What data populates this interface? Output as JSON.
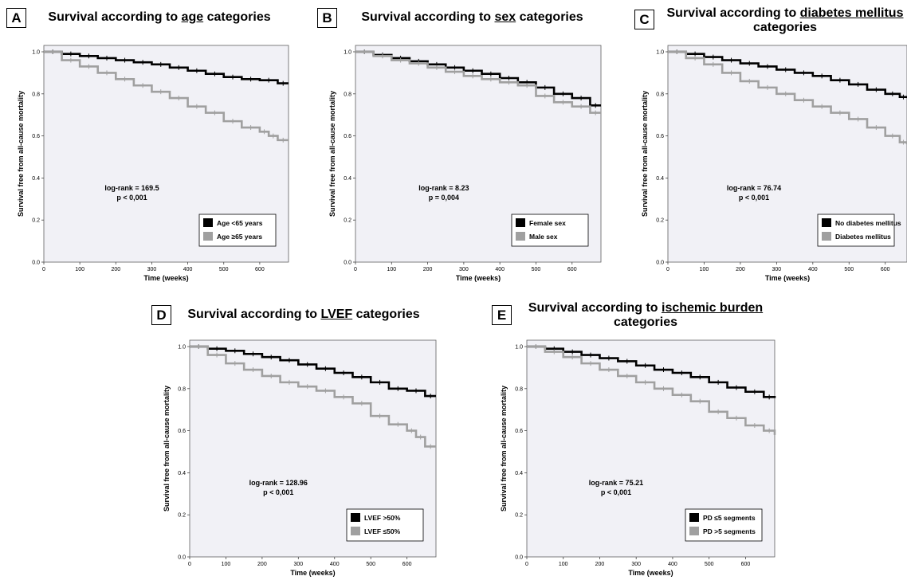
{
  "chart_data": [
    {
      "type": "line",
      "subtype": "kaplan-meier",
      "panel_letter": "A",
      "title": {
        "prefix": "Survival according to ",
        "underlined": "age",
        "suffix": " categories"
      },
      "xlabel": "Time (weeks)",
      "ylabel": "Survival free from all-cause mortality",
      "xlim": [
        0,
        680
      ],
      "ylim": [
        0,
        1.0
      ],
      "xticks": [
        0,
        100,
        200,
        300,
        400,
        500,
        600
      ],
      "yticks": [
        0.0,
        0.2,
        0.4,
        0.6,
        0.8,
        1.0
      ],
      "annotation": {
        "stat": "log-rank = 169.5",
        "p": "p < 0,001"
      },
      "legend_position": "bottom-right",
      "series": [
        {
          "name": "Age <65 years",
          "color": "#000000",
          "x": [
            0,
            50,
            100,
            150,
            200,
            250,
            300,
            350,
            400,
            450,
            500,
            550,
            600,
            650,
            680
          ],
          "y": [
            1.0,
            0.99,
            0.98,
            0.97,
            0.96,
            0.95,
            0.94,
            0.925,
            0.91,
            0.895,
            0.88,
            0.87,
            0.865,
            0.85,
            0.85
          ]
        },
        {
          "name": "Age ≥65 years",
          "color": "#a0a0a0",
          "x": [
            0,
            50,
            100,
            150,
            200,
            250,
            300,
            350,
            400,
            450,
            500,
            550,
            600,
            625,
            650,
            680
          ],
          "y": [
            1.0,
            0.96,
            0.93,
            0.9,
            0.87,
            0.84,
            0.81,
            0.78,
            0.74,
            0.71,
            0.67,
            0.64,
            0.62,
            0.6,
            0.58,
            0.58
          ]
        }
      ]
    },
    {
      "type": "line",
      "subtype": "kaplan-meier",
      "panel_letter": "B",
      "title": {
        "prefix": "Survival according to ",
        "underlined": "sex",
        "suffix": " categories"
      },
      "xlabel": "Time (weeks)",
      "ylabel": "Survival free from all-cause mortality",
      "xlim": [
        0,
        680
      ],
      "ylim": [
        0,
        1.0
      ],
      "xticks": [
        0,
        100,
        200,
        300,
        400,
        500,
        600
      ],
      "yticks": [
        0.0,
        0.2,
        0.4,
        0.6,
        0.8,
        1.0
      ],
      "annotation": {
        "stat": "log-rank = 8.23",
        "p": "p = 0,004"
      },
      "legend_position": "bottom-right",
      "series": [
        {
          "name": "Female sex",
          "color": "#000000",
          "x": [
            0,
            50,
            100,
            150,
            200,
            250,
            300,
            350,
            400,
            450,
            500,
            550,
            600,
            650,
            680
          ],
          "y": [
            1.0,
            0.985,
            0.97,
            0.955,
            0.94,
            0.925,
            0.91,
            0.895,
            0.875,
            0.855,
            0.83,
            0.8,
            0.78,
            0.745,
            0.745
          ]
        },
        {
          "name": "Male sex",
          "color": "#a0a0a0",
          "x": [
            0,
            50,
            100,
            150,
            200,
            250,
            300,
            350,
            400,
            450,
            500,
            550,
            600,
            650,
            680
          ],
          "y": [
            1.0,
            0.98,
            0.96,
            0.945,
            0.925,
            0.905,
            0.885,
            0.87,
            0.855,
            0.84,
            0.79,
            0.76,
            0.74,
            0.71,
            0.71
          ]
        }
      ]
    },
    {
      "type": "line",
      "subtype": "kaplan-meier",
      "panel_letter": "C",
      "title": {
        "prefix": "Survival according to ",
        "underlined": "diabetes mellitus",
        "suffix": " categories"
      },
      "xlabel": "Time (weeks)",
      "ylabel": "Survival free from all-cause mortality",
      "xlim": [
        0,
        660
      ],
      "ylim": [
        0,
        1.0
      ],
      "xticks": [
        0,
        100,
        200,
        300,
        400,
        500,
        600
      ],
      "yticks": [
        0.0,
        0.2,
        0.4,
        0.6,
        0.8,
        1.0
      ],
      "annotation": {
        "stat": "log-rank = 76.74",
        "p": "p < 0,001"
      },
      "legend_position": "bottom-right",
      "series": [
        {
          "name": "No diabetes mellitus",
          "color": "#000000",
          "x": [
            0,
            50,
            100,
            150,
            200,
            250,
            300,
            350,
            400,
            450,
            500,
            550,
            600,
            640,
            660
          ],
          "y": [
            1.0,
            0.99,
            0.975,
            0.96,
            0.945,
            0.93,
            0.915,
            0.9,
            0.885,
            0.865,
            0.845,
            0.82,
            0.8,
            0.785,
            0.78
          ]
        },
        {
          "name": "Diabetes mellitus",
          "color": "#a0a0a0",
          "x": [
            0,
            50,
            100,
            150,
            200,
            250,
            300,
            350,
            400,
            450,
            500,
            550,
            600,
            640,
            660
          ],
          "y": [
            1.0,
            0.97,
            0.94,
            0.9,
            0.86,
            0.83,
            0.8,
            0.77,
            0.74,
            0.71,
            0.68,
            0.64,
            0.6,
            0.57,
            0.56
          ]
        }
      ]
    },
    {
      "type": "line",
      "subtype": "kaplan-meier",
      "panel_letter": "D",
      "title": {
        "prefix": "Survival according to ",
        "underlined": "LVEF",
        "suffix": " categories"
      },
      "xlabel": "Time (weeks)",
      "ylabel": "Survival free from all-cause mortality",
      "xlim": [
        0,
        680
      ],
      "ylim": [
        0,
        1.0
      ],
      "xticks": [
        0,
        100,
        200,
        300,
        400,
        500,
        600
      ],
      "yticks": [
        0.0,
        0.2,
        0.4,
        0.6,
        0.8,
        1.0
      ],
      "annotation": {
        "stat": "log-rank = 128.96",
        "p": "p < 0,001"
      },
      "legend_position": "bottom-right",
      "series": [
        {
          "name": "LVEF >50%",
          "color": "#000000",
          "x": [
            0,
            50,
            100,
            150,
            200,
            250,
            300,
            350,
            400,
            450,
            500,
            550,
            600,
            650,
            680
          ],
          "y": [
            1.0,
            0.99,
            0.98,
            0.965,
            0.95,
            0.935,
            0.915,
            0.895,
            0.875,
            0.855,
            0.83,
            0.8,
            0.79,
            0.765,
            0.765
          ]
        },
        {
          "name": "LVEF ≤50%",
          "color": "#a0a0a0",
          "x": [
            0,
            50,
            100,
            150,
            200,
            250,
            300,
            350,
            400,
            450,
            500,
            550,
            600,
            625,
            650,
            680
          ],
          "y": [
            1.0,
            0.96,
            0.92,
            0.89,
            0.86,
            0.83,
            0.81,
            0.79,
            0.76,
            0.73,
            0.67,
            0.63,
            0.6,
            0.57,
            0.525,
            0.525
          ]
        }
      ]
    },
    {
      "type": "line",
      "subtype": "kaplan-meier",
      "panel_letter": "E",
      "title": {
        "prefix": "Survival according to ",
        "underlined": "ischemic burden",
        "suffix": " categories"
      },
      "xlabel": "Time (weeks)",
      "ylabel": "Survival free from all-cause mortality",
      "xlim": [
        0,
        680
      ],
      "ylim": [
        0,
        1.0
      ],
      "xticks": [
        0,
        100,
        200,
        300,
        400,
        500,
        600
      ],
      "yticks": [
        0.0,
        0.2,
        0.4,
        0.6,
        0.8,
        1.0
      ],
      "annotation": {
        "stat": "log-rank = 75.21",
        "p": "p < 0,001"
      },
      "legend_position": "bottom-right",
      "series": [
        {
          "name": "PD ≤5 segments",
          "color": "#000000",
          "x": [
            0,
            50,
            100,
            150,
            200,
            250,
            300,
            350,
            400,
            450,
            500,
            550,
            600,
            650,
            680
          ],
          "y": [
            1.0,
            0.99,
            0.975,
            0.96,
            0.945,
            0.93,
            0.91,
            0.89,
            0.875,
            0.855,
            0.83,
            0.805,
            0.785,
            0.76,
            0.755
          ]
        },
        {
          "name": "PD >5 segments",
          "color": "#a0a0a0",
          "x": [
            0,
            50,
            100,
            150,
            200,
            250,
            300,
            350,
            400,
            450,
            500,
            550,
            600,
            650,
            680
          ],
          "y": [
            1.0,
            0.975,
            0.95,
            0.92,
            0.89,
            0.86,
            0.83,
            0.8,
            0.77,
            0.74,
            0.69,
            0.66,
            0.625,
            0.6,
            0.58
          ]
        }
      ]
    }
  ]
}
